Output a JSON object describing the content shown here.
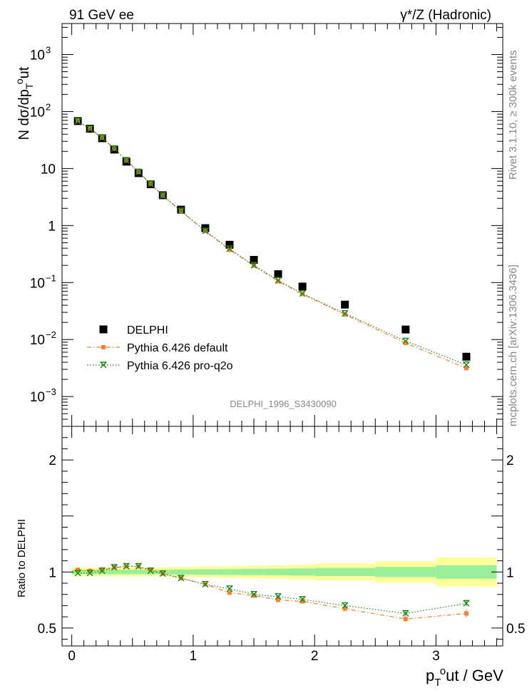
{
  "header": {
    "left": "91 GeV ee",
    "right": "γ*/Z (Hadronic)"
  },
  "side_labels": {
    "rivet": "Rivet 3.1.10, ≥ 300k events",
    "mcplots": "mcplots.cern.ch [arXiv:1306.3436]"
  },
  "analysis_tag": "DELPHI_1996_S3430090",
  "chart_data": {
    "type": "scatter",
    "x_axis": {
      "label": "pTout / GeV",
      "range": [
        -0.08,
        3.55
      ],
      "ticks": [
        "0",
        "1",
        "2",
        "3"
      ],
      "tick_values": [
        0,
        1,
        2,
        3
      ]
    },
    "top_panel": {
      "y_label": "N dσ/dpTout",
      "y_scale": "log",
      "y_range": [
        0.0003,
        3500
      ],
      "y_ticks": [
        {
          "value": 0.001,
          "base": "10",
          "exp": "−3"
        },
        {
          "value": 0.01,
          "base": "10",
          "exp": "−2"
        },
        {
          "value": 0.1,
          "base": "10",
          "exp": "−1"
        },
        {
          "value": 1,
          "base": "1",
          "exp": ""
        },
        {
          "value": 10,
          "base": "10",
          "exp": ""
        },
        {
          "value": 100,
          "base": "10",
          "exp": "2"
        },
        {
          "value": 1000,
          "base": "10",
          "exp": "3"
        }
      ]
    },
    "ratio_panel": {
      "y_label": "Ratio to DELPHI",
      "y_range": [
        0.34,
        2.3
      ],
      "y_ticks": [
        {
          "value": 0.5,
          "label": "0.5"
        },
        {
          "value": 1,
          "label": "1"
        },
        {
          "value": 2,
          "label": "2"
        }
      ],
      "band_edges": [
        0,
        0.1,
        0.2,
        0.3,
        0.4,
        0.5,
        0.6,
        0.7,
        0.8,
        1.0,
        1.2,
        1.4,
        1.6,
        1.8,
        2.0,
        2.5,
        3.0,
        3.5
      ],
      "green_halfwidth": [
        0.02,
        0.02,
        0.02,
        0.02,
        0.02,
        0.02,
        0.02,
        0.02,
        0.022,
        0.024,
        0.026,
        0.028,
        0.03,
        0.032,
        0.036,
        0.045,
        0.06
      ],
      "yellow_halfwidth": [
        0.04,
        0.04,
        0.04,
        0.04,
        0.04,
        0.04,
        0.04,
        0.04,
        0.044,
        0.048,
        0.052,
        0.056,
        0.06,
        0.066,
        0.075,
        0.095,
        0.13
      ]
    },
    "x": [
      0.05,
      0.15,
      0.25,
      0.35,
      0.45,
      0.55,
      0.65,
      0.75,
      0.9,
      1.1,
      1.3,
      1.5,
      1.7,
      1.9,
      2.25,
      2.75,
      3.25
    ],
    "series": [
      {
        "name": "DELPHI",
        "color": "#000000",
        "marker": "square",
        "values": [
          68,
          50,
          34,
          21.5,
          13.2,
          8.3,
          5.3,
          3.4,
          1.9,
          0.9,
          0.46,
          0.25,
          0.14,
          0.085,
          0.041,
          0.015,
          0.005
        ],
        "ratio": [
          1,
          1,
          1,
          1,
          1,
          1,
          1,
          1,
          1,
          1,
          1,
          1,
          1,
          1,
          1,
          1,
          1
        ]
      },
      {
        "name": "Pythia 6.426 default",
        "color": "#ff7f2a",
        "marker": "square-small",
        "line": "dashdot",
        "values": [
          69.4,
          50.5,
          34.7,
          22.4,
          13.9,
          8.7,
          5.4,
          3.35,
          1.8,
          0.8,
          0.375,
          0.198,
          0.105,
          0.0627,
          0.0275,
          0.0087,
          0.00315
        ],
        "ratio": [
          1.02,
          1.01,
          1.02,
          1.04,
          1.05,
          1.05,
          1.02,
          0.985,
          0.945,
          0.89,
          0.815,
          0.79,
          0.75,
          0.738,
          0.672,
          0.58,
          0.63
        ],
        "ratio_err": [
          0.01,
          0.01,
          0.01,
          0.01,
          0.01,
          0.01,
          0.01,
          0.01,
          0.01,
          0.01,
          0.01,
          0.01,
          0.012,
          0.014,
          0.016,
          0.025,
          0.035
        ]
      },
      {
        "name": "Pythia 6.426 pro-q2o",
        "color": "#1a8a1a",
        "marker": "star",
        "line": "dotted",
        "values": [
          67.3,
          49.5,
          34.4,
          22.4,
          13.9,
          8.7,
          5.35,
          3.35,
          1.8,
          0.8,
          0.39,
          0.2,
          0.109,
          0.064,
          0.0287,
          0.0094,
          0.0036
        ],
        "ratio": [
          0.99,
          0.99,
          1.01,
          1.04,
          1.05,
          1.05,
          1.01,
          0.985,
          0.945,
          0.89,
          0.85,
          0.8,
          0.78,
          0.755,
          0.7,
          0.63,
          0.72
        ],
        "ratio_err": [
          0.01,
          0.01,
          0.01,
          0.01,
          0.01,
          0.01,
          0.01,
          0.01,
          0.01,
          0.01,
          0.01,
          0.01,
          0.012,
          0.014,
          0.016,
          0.02,
          0.025
        ]
      }
    ]
  }
}
